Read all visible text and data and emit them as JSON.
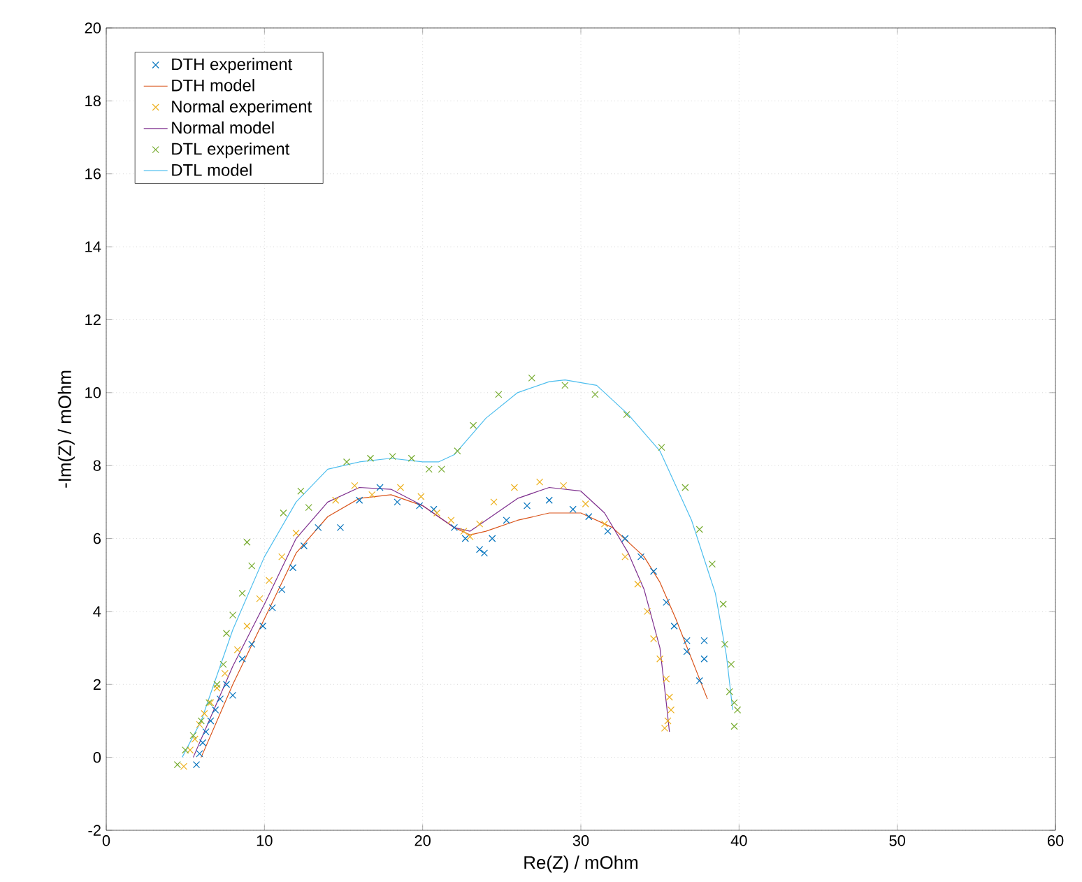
{
  "chart_data": {
    "type": "scatter",
    "xlabel": "Re(Z) / mOhm",
    "ylabel": "-Im(Z) / mOhm",
    "xlim": [
      0,
      60
    ],
    "xticks": [
      0,
      10,
      20,
      30,
      40,
      50,
      60
    ],
    "ylim": [
      -2,
      20
    ],
    "yticks": [
      -2,
      0,
      2,
      4,
      6,
      8,
      10,
      12,
      14,
      16,
      18,
      20
    ],
    "grid": true,
    "legend": "top left",
    "series": [
      {
        "name": "DTH experiment",
        "marker": "cross",
        "color": "#0072bd",
        "x": [
          5.7,
          5.9,
          6.1,
          6.3,
          6.6,
          6.9,
          7.2,
          7.6,
          8.0,
          8.6,
          9.2,
          9.9,
          10.5,
          11.1,
          11.8,
          12.5,
          13.4,
          14.8,
          16.0,
          17.3,
          18.4,
          19.8,
          20.7,
          22.0,
          22.7,
          23.6,
          23.9,
          24.4,
          25.3,
          26.6,
          28.0,
          29.5,
          30.5,
          31.7,
          32.8,
          33.8,
          34.6,
          35.4,
          35.9,
          36.7,
          36.7,
          37.8,
          37.8,
          37.5
        ],
        "values": [
          -0.2,
          0.1,
          0.4,
          0.7,
          1.0,
          1.3,
          1.6,
          2.0,
          1.7,
          2.7,
          3.1,
          3.6,
          4.1,
          4.6,
          5.2,
          5.8,
          6.3,
          6.3,
          7.05,
          7.4,
          7.0,
          6.9,
          6.8,
          6.3,
          6.0,
          5.7,
          5.6,
          6.0,
          6.5,
          6.9,
          7.05,
          6.8,
          6.6,
          6.2,
          6.0,
          5.5,
          5.1,
          4.25,
          3.6,
          3.2,
          2.9,
          3.2,
          2.7,
          2.1
        ]
      },
      {
        "name": "DTH model",
        "type": "line",
        "marker": "none",
        "color": "#d95319",
        "x": [
          6.0,
          8,
          10,
          12,
          14,
          16,
          18,
          20,
          22,
          23,
          24,
          26,
          28,
          30,
          32,
          34,
          35,
          36,
          37,
          38.0
        ],
        "values": [
          0,
          2,
          3.8,
          5.6,
          6.6,
          7.1,
          7.2,
          6.9,
          6.3,
          6.1,
          6.2,
          6.5,
          6.7,
          6.7,
          6.3,
          5.5,
          4.8,
          3.8,
          2.7,
          1.6
        ]
      },
      {
        "name": "Normal experiment",
        "marker": "cross",
        "color": "#edb120",
        "x": [
          4.9,
          5.3,
          5.6,
          5.9,
          6.2,
          6.6,
          7.0,
          7.5,
          8.3,
          8.9,
          9.7,
          10.3,
          11.1,
          12.0,
          14.5,
          15.7,
          16.8,
          18.6,
          19.9,
          20.9,
          21.8,
          22.6,
          23.0,
          23.6,
          24.5,
          25.8,
          27.4,
          28.9,
          30.3,
          31.5,
          32.8,
          33.6,
          34.2,
          34.6,
          35.0,
          35.4,
          35.6,
          35.7,
          35.5,
          35.3
        ],
        "values": [
          -0.25,
          0.2,
          0.5,
          0.9,
          1.2,
          1.5,
          1.9,
          2.3,
          2.95,
          3.6,
          4.35,
          4.85,
          5.5,
          6.15,
          7.05,
          7.45,
          7.2,
          7.4,
          7.15,
          6.7,
          6.5,
          6.2,
          6.05,
          6.4,
          7.0,
          7.4,
          7.55,
          7.45,
          6.95,
          6.4,
          5.5,
          4.75,
          4.0,
          3.25,
          2.7,
          2.15,
          1.65,
          1.3,
          1.0,
          0.8
        ]
      },
      {
        "name": "Normal model",
        "type": "line",
        "marker": "none",
        "color": "#7e2f8e",
        "x": [
          5.5,
          8,
          10,
          12,
          14,
          16,
          18,
          20,
          22,
          23,
          24,
          26,
          28,
          30,
          31.5,
          33,
          34,
          35,
          35.4,
          35.6
        ],
        "values": [
          0,
          2.5,
          4.2,
          6.0,
          7.0,
          7.4,
          7.35,
          6.9,
          6.3,
          6.2,
          6.5,
          7.1,
          7.4,
          7.3,
          6.7,
          5.6,
          4.6,
          3.0,
          1.5,
          0.7
        ]
      },
      {
        "name": "DTL experiment",
        "marker": "cross",
        "color": "#77ac30",
        "x": [
          4.5,
          5.0,
          5.5,
          6.0,
          6.5,
          7.0,
          7.4,
          7.6,
          8.0,
          8.6,
          9.2,
          8.9,
          11.2,
          12.3,
          12.8,
          15.2,
          16.7,
          18.1,
          19.3,
          20.4,
          21.2,
          22.2,
          23.2,
          24.8,
          26.9,
          29.0,
          30.9,
          32.9,
          35.1,
          36.6,
          37.5,
          38.3,
          39.0,
          39.1,
          39.5,
          39.4,
          39.7,
          39.9,
          39.7
        ],
        "values": [
          -0.2,
          0.2,
          0.6,
          1.0,
          1.5,
          2.0,
          2.55,
          3.4,
          3.9,
          4.5,
          5.25,
          5.9,
          6.7,
          7.3,
          6.85,
          8.1,
          8.2,
          8.25,
          8.2,
          7.9,
          7.9,
          8.4,
          9.1,
          9.95,
          10.4,
          10.2,
          9.95,
          9.4,
          8.5,
          7.4,
          6.25,
          5.3,
          4.2,
          3.1,
          2.55,
          1.8,
          1.5,
          1.3,
          0.85
        ]
      },
      {
        "name": "DTL model",
        "type": "line",
        "marker": "none",
        "color": "#4dbeee",
        "x": [
          4.8,
          6,
          8,
          10,
          12,
          14,
          16,
          18,
          20,
          21,
          22,
          24,
          26,
          28,
          29,
          31,
          33,
          35,
          37,
          38.5,
          39.2,
          39.6
        ],
        "values": [
          0,
          1,
          3.5,
          5.5,
          7.0,
          7.9,
          8.1,
          8.2,
          8.1,
          8.1,
          8.3,
          9.3,
          10.0,
          10.3,
          10.35,
          10.2,
          9.4,
          8.4,
          6.5,
          4.5,
          2.8,
          1.3
        ]
      }
    ]
  }
}
